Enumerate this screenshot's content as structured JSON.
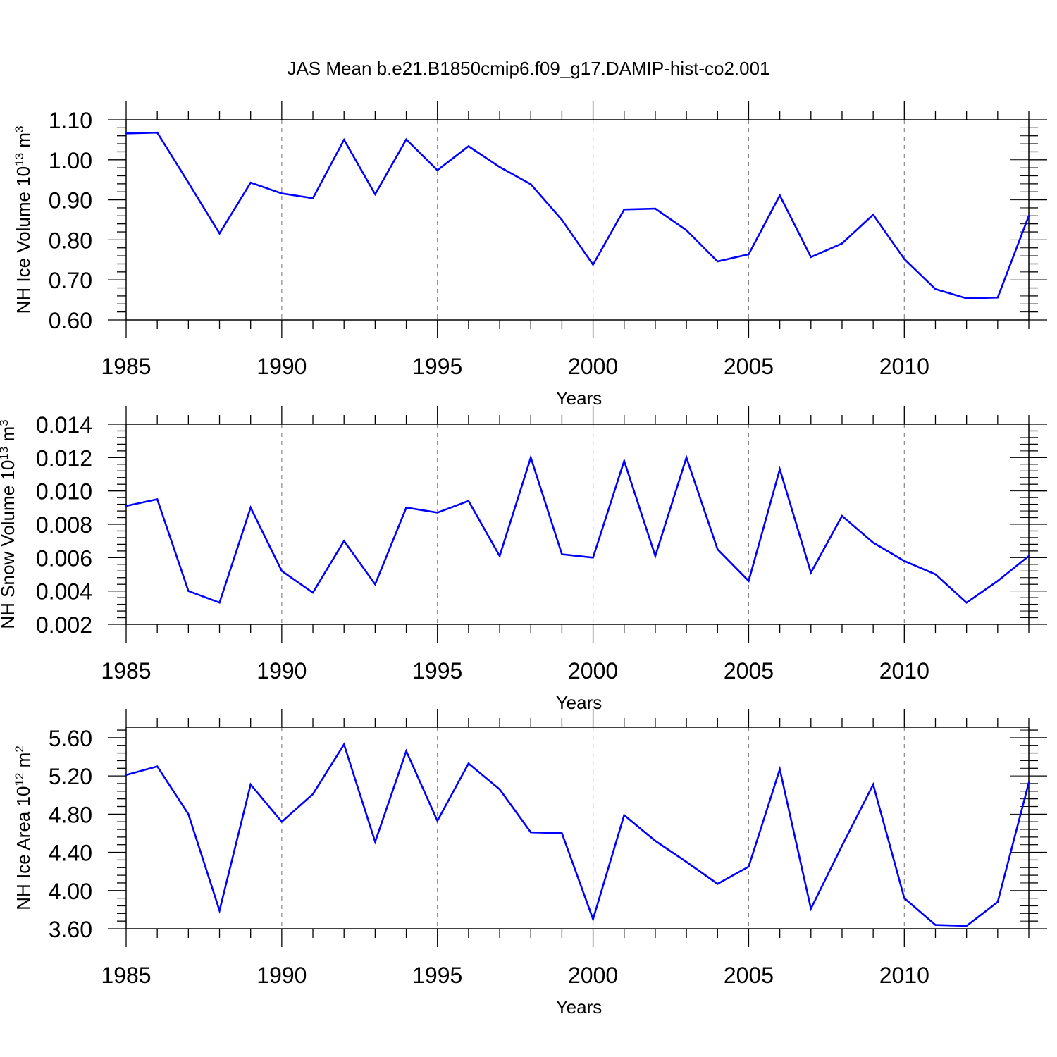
{
  "figure": {
    "title": "JAS Mean b.e21.B1850cmip6.f09_g17.DAMIP-hist-co2.001"
  },
  "colors": {
    "line": "#0000ff",
    "axis": "#000000",
    "grid": "#888888"
  },
  "chart_data": [
    {
      "type": "line",
      "xlabel": "Years",
      "ylabel": {
        "main": "NH Ice Volume 10",
        "exp": "13",
        "unit": " m",
        "unit_exp": "3"
      },
      "xlim": [
        1985,
        2014
      ],
      "ylim": [
        0.6,
        1.1
      ],
      "xticks": [
        "1985",
        "1990",
        "1995",
        "2000",
        "2005",
        "2010"
      ],
      "yticks": [
        "0.60",
        "0.70",
        "0.80",
        "0.90",
        "1.00",
        "1.10"
      ],
      "x": [
        1985,
        1986,
        1987,
        1988,
        1989,
        1990,
        1991,
        1992,
        1993,
        1994,
        1995,
        1996,
        1997,
        1998,
        1999,
        2000,
        2001,
        2002,
        2003,
        2004,
        2005,
        2006,
        2007,
        2008,
        2009,
        2010,
        2011,
        2012,
        2013,
        2014
      ],
      "series": [
        {
          "name": "NH Ice Volume",
          "values": [
            1.066,
            1.068,
            0.943,
            0.816,
            0.943,
            0.916,
            0.904,
            1.05,
            0.914,
            1.051,
            0.974,
            1.034,
            0.982,
            0.939,
            0.85,
            0.738,
            0.876,
            0.878,
            0.824,
            0.746,
            0.764,
            0.911,
            0.757,
            0.791,
            0.863,
            0.752,
            0.677,
            0.654,
            0.656,
            0.86
          ]
        }
      ]
    },
    {
      "type": "line",
      "xlabel": "Years",
      "ylabel": {
        "main": "NH Snow Volume 10",
        "exp": "13",
        "unit": " m",
        "unit_exp": "3"
      },
      "xlim": [
        1985,
        2014
      ],
      "ylim": [
        0.002,
        0.014
      ],
      "xticks": [
        "1985",
        "1990",
        "1995",
        "2000",
        "2005",
        "2010"
      ],
      "yticks": [
        "0.002",
        "0.004",
        "0.006",
        "0.008",
        "0.010",
        "0.012",
        "0.014"
      ],
      "x": [
        1985,
        1986,
        1987,
        1988,
        1989,
        1990,
        1991,
        1992,
        1993,
        1994,
        1995,
        1996,
        1997,
        1998,
        1999,
        2000,
        2001,
        2002,
        2003,
        2004,
        2005,
        2006,
        2007,
        2008,
        2009,
        2010,
        2011,
        2012,
        2013,
        2014
      ],
      "series": [
        {
          "name": "NH Snow Volume",
          "values": [
            0.0091,
            0.0095,
            0.004,
            0.0033,
            0.009,
            0.0052,
            0.0039,
            0.007,
            0.0044,
            0.009,
            0.0087,
            0.0094,
            0.0061,
            0.012,
            0.0062,
            0.006,
            0.0118,
            0.0061,
            0.012,
            0.0065,
            0.0046,
            0.0113,
            0.0051,
            0.0085,
            0.0069,
            0.0058,
            0.005,
            0.0033,
            0.0046,
            0.0061
          ]
        }
      ]
    },
    {
      "type": "line",
      "xlabel": "Years",
      "ylabel": {
        "main": "NH Ice Area 10",
        "exp": "12",
        "unit": " m",
        "unit_exp": "2"
      },
      "xlim": [
        1985,
        2014
      ],
      "ylim": [
        3.6,
        5.71
      ],
      "xticks": [
        "1985",
        "1990",
        "1995",
        "2000",
        "2005",
        "2010"
      ],
      "yticks": [
        "3.60",
        "4.00",
        "4.40",
        "4.80",
        "5.20",
        "5.60"
      ],
      "x": [
        1985,
        1986,
        1987,
        1988,
        1989,
        1990,
        1991,
        1992,
        1993,
        1994,
        1995,
        1996,
        1997,
        1998,
        1999,
        2000,
        2001,
        2002,
        2003,
        2004,
        2005,
        2006,
        2007,
        2008,
        2009,
        2010,
        2011,
        2012,
        2013,
        2014
      ],
      "series": [
        {
          "name": "NH Ice Area",
          "values": [
            5.21,
            5.3,
            4.8,
            3.79,
            5.11,
            4.72,
            5.01,
            5.53,
            4.51,
            5.46,
            4.73,
            5.33,
            5.06,
            4.61,
            4.6,
            3.7,
            4.79,
            4.52,
            4.3,
            4.07,
            4.25,
            5.27,
            3.81,
            4.47,
            5.11,
            3.92,
            3.64,
            3.63,
            3.88,
            5.13
          ]
        }
      ]
    }
  ]
}
